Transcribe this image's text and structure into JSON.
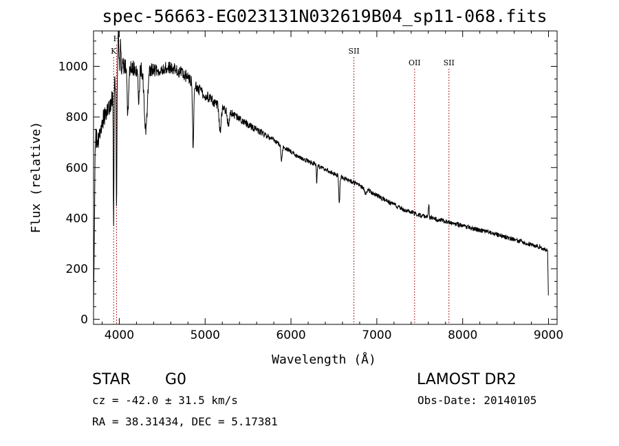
{
  "chart_data": {
    "type": "line",
    "title": "spec-56663-EG023131N032619B04_sp11-068.fits",
    "xlabel": "Wavelength (Å)",
    "ylabel": "Flux (relative)",
    "xlim": [
      3700,
      9100
    ],
    "ylim": [
      -20,
      1140
    ],
    "x_ticks": [
      4000,
      5000,
      6000,
      7000,
      8000,
      9000
    ],
    "y_ticks": [
      0,
      200,
      400,
      600,
      800,
      1000
    ],
    "series": [
      {
        "name": "spectrum",
        "continuum": {
          "x": [
            3700,
            3720,
            3760,
            3800,
            3850,
            3900,
            3935,
            3950,
            3968,
            3990,
            4050,
            4150,
            4250,
            4350,
            4450,
            4550,
            4650,
            4750,
            4850,
            4950,
            5100,
            5300,
            5500,
            5700,
            5900,
            6100,
            6300,
            6500,
            6700,
            6900,
            7100,
            7300,
            7500,
            7700,
            7900,
            8100,
            8300,
            8500,
            8700,
            8900,
            8990,
            9000
          ],
          "y": [
            30,
            720,
            700,
            780,
            820,
            850,
            900,
            940,
            960,
            1000,
            1000,
            995,
            990,
            985,
            990,
            995,
            990,
            970,
            940,
            900,
            860,
            815,
            770,
            730,
            685,
            640,
            610,
            575,
            545,
            510,
            470,
            435,
            412,
            395,
            380,
            360,
            345,
            325,
            305,
            285,
            270,
            40
          ]
        },
        "absorption_features": [
          {
            "x": 3934,
            "depth": 520,
            "width": 4
          },
          {
            "x": 3968,
            "depth": 560,
            "width": 4
          },
          {
            "x": 4101,
            "depth": 180,
            "width": 10
          },
          {
            "x": 4227,
            "depth": 120,
            "width": 8
          },
          {
            "x": 4310,
            "depth": 240,
            "width": 18
          },
          {
            "x": 4861,
            "depth": 260,
            "width": 7
          },
          {
            "x": 5175,
            "depth": 100,
            "width": 12
          },
          {
            "x": 5270,
            "depth": 60,
            "width": 10
          },
          {
            "x": 5890,
            "depth": 60,
            "width": 8
          },
          {
            "x": 6300,
            "depth": 80,
            "width": 4
          },
          {
            "x": 6563,
            "depth": 110,
            "width": 6
          },
          {
            "x": 6870,
            "depth": 20,
            "width": 12
          }
        ],
        "emission_features": [
          {
            "x": 3990,
            "height": 130,
            "width": 5
          },
          {
            "x": 4015,
            "height": 90,
            "width": 4
          },
          {
            "x": 7605,
            "height": 50,
            "width": 5
          }
        ],
        "noise_amplitude": {
          "blue": 40,
          "red": 9
        }
      }
    ],
    "line_markers": [
      {
        "label": "H",
        "x": 3968
      },
      {
        "label": "K",
        "x": 3934
      },
      {
        "label": "SII",
        "x": 6733
      },
      {
        "label": "OII",
        "x": 7440
      },
      {
        "label": "SII",
        "x": 7840
      }
    ],
    "colors": {
      "spectrum": "#000000",
      "markers": "#b22222",
      "axes": "#000000"
    }
  },
  "info": {
    "class_label": "STAR",
    "subclass_label": "G0",
    "survey_label": "LAMOST DR2",
    "cz_text": "cz = -42.0 ± 31.5 km/s",
    "obs_date_text": "Obs-Date: 20140105",
    "radec_text": "RA =  38.31434, DEC =   5.17381"
  }
}
